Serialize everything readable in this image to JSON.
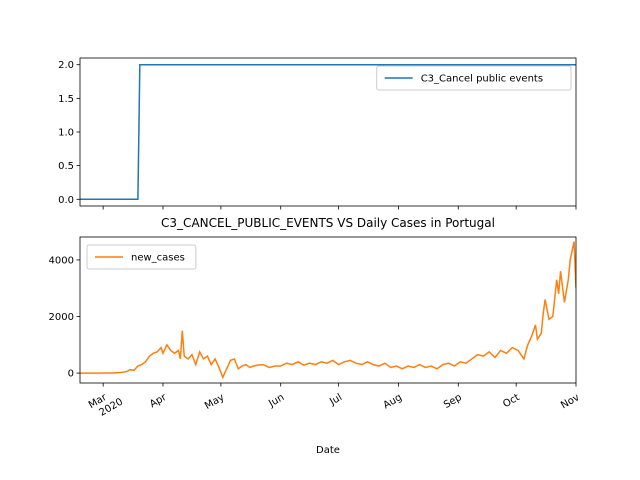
{
  "chart_data": [
    {
      "type": "line",
      "x": [
        "2020-02-18",
        "2020-03-19",
        "2020-03-20",
        "2020-11-01"
      ],
      "series": [
        {
          "name": "C3_Cancel public events",
          "color": "#1f77b4",
          "values": [
            0,
            0,
            2,
            2
          ]
        }
      ],
      "xlim": [
        "2020-02-18",
        "2020-11-01"
      ],
      "ylim": [
        -0.1,
        2.1
      ],
      "yticks": [
        {
          "value": 0,
          "label": "0.0"
        },
        0.5,
        {
          "value": 1,
          "label": "1.0"
        },
        1.5,
        {
          "value": 2,
          "label": "2.0"
        }
      ],
      "legend": "upper right"
    },
    {
      "type": "line",
      "title": "C3_CANCEL_PUBLIC_EVENTS VS Daily Cases in Portugal",
      "x_label": "Date",
      "x": [
        "2020-02-18",
        "2020-02-26",
        "2020-03-02",
        "2020-03-06",
        "2020-03-10",
        "2020-03-13",
        "2020-03-15",
        "2020-03-17",
        "2020-03-19",
        "2020-03-21",
        "2020-03-23",
        "2020-03-25",
        "2020-03-27",
        "2020-03-29",
        "2020-03-31",
        "2020-04-01",
        "2020-04-03",
        "2020-04-05",
        "2020-04-07",
        "2020-04-09",
        "2020-04-10",
        "2020-04-11",
        "2020-04-12",
        "2020-04-14",
        "2020-04-16",
        "2020-04-18",
        "2020-04-20",
        "2020-04-22",
        "2020-04-24",
        "2020-04-26",
        "2020-04-28",
        "2020-04-30",
        "2020-05-02",
        "2020-05-04",
        "2020-05-06",
        "2020-05-08",
        "2020-05-10",
        "2020-05-12",
        "2020-05-14",
        "2020-05-16",
        "2020-05-18",
        "2020-05-20",
        "2020-05-23",
        "2020-05-26",
        "2020-05-29",
        "2020-06-01",
        "2020-06-04",
        "2020-06-07",
        "2020-06-10",
        "2020-06-13",
        "2020-06-16",
        "2020-06-19",
        "2020-06-22",
        "2020-06-25",
        "2020-06-28",
        "2020-07-01",
        "2020-07-04",
        "2020-07-07",
        "2020-07-10",
        "2020-07-13",
        "2020-07-16",
        "2020-07-19",
        "2020-07-22",
        "2020-07-25",
        "2020-07-28",
        "2020-07-31",
        "2020-08-03",
        "2020-08-06",
        "2020-08-09",
        "2020-08-12",
        "2020-08-15",
        "2020-08-18",
        "2020-08-21",
        "2020-08-24",
        "2020-08-27",
        "2020-08-30",
        "2020-09-02",
        "2020-09-05",
        "2020-09-08",
        "2020-09-11",
        "2020-09-14",
        "2020-09-17",
        "2020-09-20",
        "2020-09-23",
        "2020-09-26",
        "2020-09-29",
        "2020-10-02",
        "2020-10-05",
        "2020-10-07",
        "2020-10-09",
        "2020-10-11",
        "2020-10-12",
        "2020-10-14",
        "2020-10-15",
        "2020-10-16",
        "2020-10-18",
        "2020-10-20",
        "2020-10-22",
        "2020-10-23",
        "2020-10-24",
        "2020-10-26",
        "2020-10-28",
        "2020-10-29",
        "2020-10-31",
        "2020-11-01"
      ],
      "series": [
        {
          "name": "new_cases",
          "color": "#ff7f0e",
          "values": [
            0,
            0,
            2,
            5,
            20,
            50,
            120,
            100,
            250,
            300,
            400,
            600,
            700,
            750,
            900,
            700,
            1000,
            800,
            700,
            800,
            500,
            1500,
            600,
            500,
            650,
            300,
            750,
            500,
            600,
            300,
            500,
            200,
            -150,
            150,
            450,
            500,
            150,
            250,
            300,
            200,
            250,
            280,
            300,
            200,
            250,
            250,
            350,
            300,
            400,
            280,
            350,
            300,
            400,
            350,
            450,
            300,
            400,
            450,
            350,
            300,
            400,
            300,
            250,
            350,
            200,
            250,
            150,
            250,
            200,
            300,
            200,
            250,
            150,
            300,
            350,
            250,
            400,
            350,
            500,
            650,
            600,
            750,
            550,
            800,
            700,
            900,
            800,
            500,
            1000,
            1300,
            1700,
            1200,
            1400,
            2100,
            2600,
            1900,
            2000,
            3300,
            2800,
            3600,
            2500,
            3300,
            4000,
            4650,
            3000
          ]
        }
      ],
      "xlim": [
        "2020-02-18",
        "2020-11-01"
      ],
      "xticks": [
        {
          "value": "2020-03-01",
          "label": "Mar 2020"
        },
        {
          "value": "2020-04-01",
          "label": "Apr"
        },
        {
          "value": "2020-05-01",
          "label": "May"
        },
        {
          "value": "2020-06-01",
          "label": "Jun"
        },
        {
          "value": "2020-07-01",
          "label": "Jul"
        },
        {
          "value": "2020-08-01",
          "label": "Aug"
        },
        {
          "value": "2020-09-01",
          "label": "Sep"
        },
        {
          "value": "2020-10-01",
          "label": "Oct"
        },
        {
          "value": "2020-11-01",
          "label": "Nov"
        }
      ],
      "ylim": [
        -350,
        4810
      ],
      "yticks": [
        0,
        2000,
        4000
      ],
      "legend": "upper left"
    }
  ]
}
